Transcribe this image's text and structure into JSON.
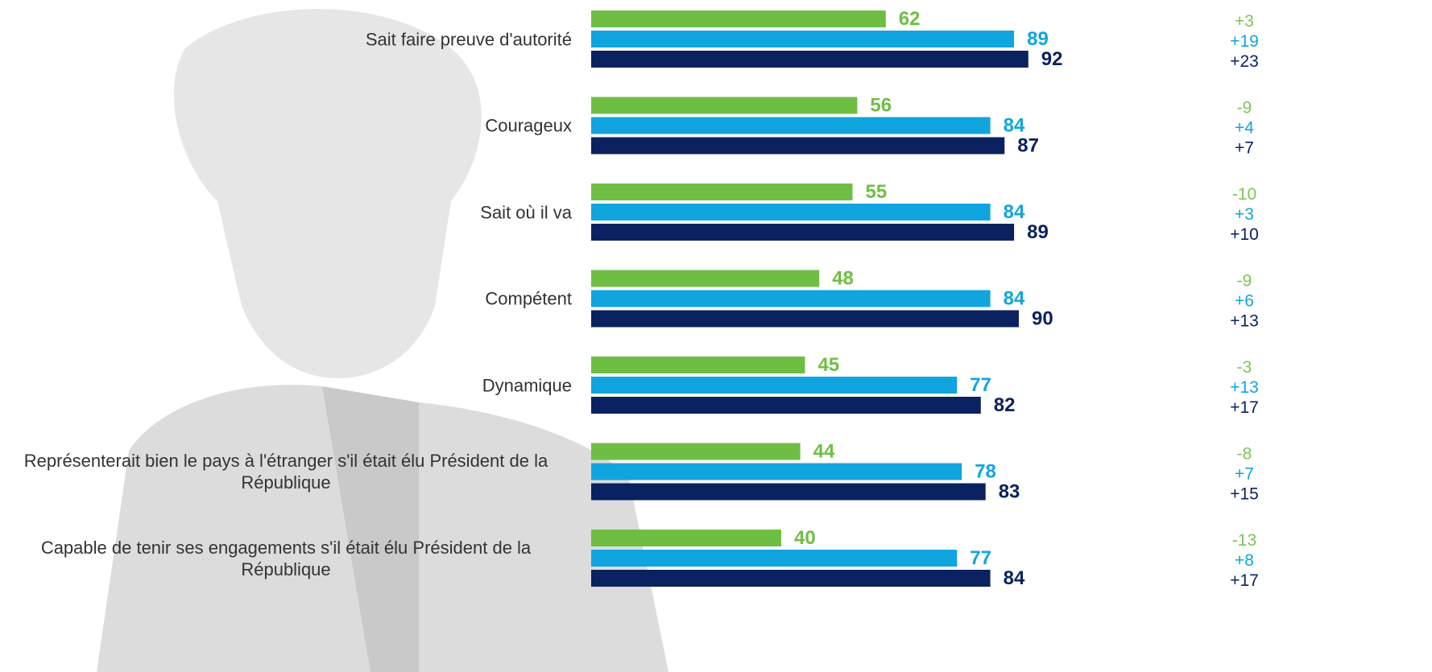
{
  "chart_data": {
    "type": "bar",
    "orientation": "horizontal",
    "categories": [
      "Sait faire preuve d'autorité",
      "Courageux",
      "Sait où il va",
      "Compétent",
      "Dynamique",
      "Représenterait bien le pays à l'étranger s'il était élu Président de la République",
      "Capable de tenir ses engagements s'il était élu Président de la République"
    ],
    "series": [
      {
        "color": "#6fbe44",
        "values": [
          62,
          56,
          55,
          48,
          45,
          44,
          40
        ],
        "changes": [
          "+3",
          "-9",
          "-10",
          "-9",
          "-3",
          "-8",
          "-13"
        ]
      },
      {
        "color": "#10a5de",
        "values": [
          89,
          84,
          84,
          84,
          77,
          78,
          77
        ],
        "changes": [
          "+19",
          "+4",
          "+3",
          "+6",
          "+13",
          "+7",
          "+8"
        ]
      },
      {
        "color": "#0b2260",
        "values": [
          92,
          87,
          89,
          90,
          82,
          83,
          84
        ],
        "changes": [
          "+23",
          "+7",
          "+10",
          "+13",
          "+17",
          "+15",
          "+17"
        ]
      }
    ]
  }
}
